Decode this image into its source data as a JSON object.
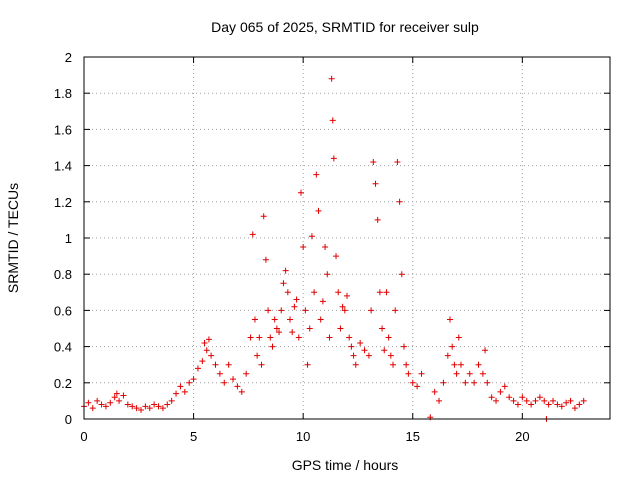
{
  "chart_data": {
    "type": "scatter",
    "title": "Day 065 of 2025, SRMTID for receiver sulp",
    "xlabel": "GPS time / hours",
    "ylabel": "SRMTID / TECUs",
    "xlim": [
      0,
      24
    ],
    "ylim": [
      0,
      2
    ],
    "xticks": [
      0,
      5,
      10,
      15,
      20
    ],
    "xtick_labels": [
      "0",
      "5",
      "10",
      "15",
      "20"
    ],
    "yticks": [
      0,
      0.2,
      0.4,
      0.6,
      0.8,
      1,
      1.2,
      1.4,
      1.6,
      1.8,
      2
    ],
    "ytick_labels": [
      "0",
      "0.2",
      "0.4",
      "0.6",
      "0.8",
      "1",
      "1.2",
      "1.4",
      "1.6",
      "1.8",
      "2"
    ],
    "grid": true,
    "marker": "+",
    "color": "#e00000",
    "series": [
      {
        "name": "SRMTID",
        "points": [
          [
            0.0,
            0.07
          ],
          [
            0.2,
            0.09
          ],
          [
            0.4,
            0.06
          ],
          [
            0.6,
            0.1
          ],
          [
            0.8,
            0.08
          ],
          [
            1.0,
            0.07
          ],
          [
            1.2,
            0.09
          ],
          [
            1.4,
            0.12
          ],
          [
            1.5,
            0.14
          ],
          [
            1.6,
            0.1
          ],
          [
            1.8,
            0.13
          ],
          [
            2.0,
            0.08
          ],
          [
            2.2,
            0.07
          ],
          [
            2.4,
            0.06
          ],
          [
            2.6,
            0.05
          ],
          [
            2.8,
            0.07
          ],
          [
            3.0,
            0.06
          ],
          [
            3.2,
            0.08
          ],
          [
            3.4,
            0.07
          ],
          [
            3.6,
            0.06
          ],
          [
            3.8,
            0.08
          ],
          [
            4.0,
            0.1
          ],
          [
            4.2,
            0.14
          ],
          [
            4.4,
            0.18
          ],
          [
            4.6,
            0.15
          ],
          [
            4.8,
            0.2
          ],
          [
            5.0,
            0.22
          ],
          [
            5.2,
            0.28
          ],
          [
            5.4,
            0.32
          ],
          [
            5.5,
            0.42
          ],
          [
            5.6,
            0.38
          ],
          [
            5.7,
            0.44
          ],
          [
            5.8,
            0.35
          ],
          [
            6.0,
            0.3
          ],
          [
            6.2,
            0.25
          ],
          [
            6.4,
            0.2
          ],
          [
            6.6,
            0.3
          ],
          [
            6.8,
            0.22
          ],
          [
            7.0,
            0.18
          ],
          [
            7.2,
            0.15
          ],
          [
            7.4,
            0.25
          ],
          [
            7.6,
            0.45
          ],
          [
            7.7,
            1.02
          ],
          [
            7.8,
            0.55
          ],
          [
            7.9,
            0.35
          ],
          [
            8.0,
            0.45
          ],
          [
            8.1,
            0.3
          ],
          [
            8.2,
            1.12
          ],
          [
            8.3,
            0.88
          ],
          [
            8.4,
            0.6
          ],
          [
            8.5,
            0.45
          ],
          [
            8.6,
            0.4
          ],
          [
            8.7,
            0.55
          ],
          [
            8.8,
            0.5
          ],
          [
            8.9,
            0.48
          ],
          [
            9.0,
            0.6
          ],
          [
            9.1,
            0.75
          ],
          [
            9.2,
            0.82
          ],
          [
            9.3,
            0.7
          ],
          [
            9.4,
            0.55
          ],
          [
            9.5,
            0.48
          ],
          [
            9.6,
            0.62
          ],
          [
            9.7,
            0.66
          ],
          [
            9.8,
            0.45
          ],
          [
            9.9,
            1.25
          ],
          [
            10.0,
            0.95
          ],
          [
            10.1,
            0.6
          ],
          [
            10.2,
            0.3
          ],
          [
            10.3,
            0.5
          ],
          [
            10.4,
            1.01
          ],
          [
            10.5,
            0.7
          ],
          [
            10.6,
            1.35
          ],
          [
            10.7,
            1.15
          ],
          [
            10.8,
            0.55
          ],
          [
            10.9,
            0.65
          ],
          [
            11.0,
            0.95
          ],
          [
            11.1,
            0.8
          ],
          [
            11.2,
            0.45
          ],
          [
            11.3,
            1.88
          ],
          [
            11.35,
            1.65
          ],
          [
            11.4,
            1.44
          ],
          [
            11.5,
            0.9
          ],
          [
            11.6,
            0.7
          ],
          [
            11.7,
            0.5
          ],
          [
            11.8,
            0.62
          ],
          [
            11.9,
            0.6
          ],
          [
            12.0,
            0.68
          ],
          [
            12.1,
            0.45
          ],
          [
            12.2,
            0.4
          ],
          [
            12.3,
            0.35
          ],
          [
            12.4,
            0.3
          ],
          [
            12.6,
            0.42
          ],
          [
            12.8,
            0.38
          ],
          [
            13.0,
            0.35
          ],
          [
            13.1,
            0.6
          ],
          [
            13.2,
            1.42
          ],
          [
            13.3,
            1.3
          ],
          [
            13.4,
            1.1
          ],
          [
            13.5,
            0.7
          ],
          [
            13.6,
            0.5
          ],
          [
            13.7,
            0.38
          ],
          [
            13.8,
            0.7
          ],
          [
            13.9,
            0.45
          ],
          [
            14.0,
            0.35
          ],
          [
            14.1,
            0.3
          ],
          [
            14.2,
            0.6
          ],
          [
            14.3,
            1.42
          ],
          [
            14.4,
            1.2
          ],
          [
            14.5,
            0.8
          ],
          [
            14.6,
            0.4
          ],
          [
            14.7,
            0.3
          ],
          [
            14.8,
            0.25
          ],
          [
            15.0,
            0.2
          ],
          [
            15.2,
            0.18
          ],
          [
            15.4,
            0.25
          ],
          [
            15.8,
            0.01
          ],
          [
            16.0,
            0.15
          ],
          [
            16.2,
            0.1
          ],
          [
            16.4,
            0.2
          ],
          [
            16.6,
            0.35
          ],
          [
            16.7,
            0.55
          ],
          [
            16.8,
            0.4
          ],
          [
            16.9,
            0.3
          ],
          [
            17.0,
            0.25
          ],
          [
            17.1,
            0.45
          ],
          [
            17.2,
            0.3
          ],
          [
            17.4,
            0.2
          ],
          [
            17.6,
            0.25
          ],
          [
            17.8,
            0.2
          ],
          [
            18.0,
            0.3
          ],
          [
            18.2,
            0.25
          ],
          [
            18.3,
            0.38
          ],
          [
            18.4,
            0.2
          ],
          [
            18.6,
            0.12
          ],
          [
            18.8,
            0.1
          ],
          [
            19.0,
            0.15
          ],
          [
            19.2,
            0.18
          ],
          [
            19.4,
            0.12
          ],
          [
            19.6,
            0.1
          ],
          [
            19.8,
            0.08
          ],
          [
            20.0,
            0.12
          ],
          [
            20.2,
            0.1
          ],
          [
            20.4,
            0.08
          ],
          [
            20.6,
            0.1
          ],
          [
            20.8,
            0.12
          ],
          [
            21.0,
            0.1
          ],
          [
            21.1,
            0.0
          ],
          [
            21.2,
            0.08
          ],
          [
            21.4,
            0.1
          ],
          [
            21.6,
            0.08
          ],
          [
            21.8,
            0.07
          ],
          [
            22.0,
            0.09
          ],
          [
            22.2,
            0.1
          ],
          [
            22.4,
            0.06
          ],
          [
            22.6,
            0.08
          ],
          [
            22.8,
            0.1
          ]
        ]
      }
    ]
  }
}
